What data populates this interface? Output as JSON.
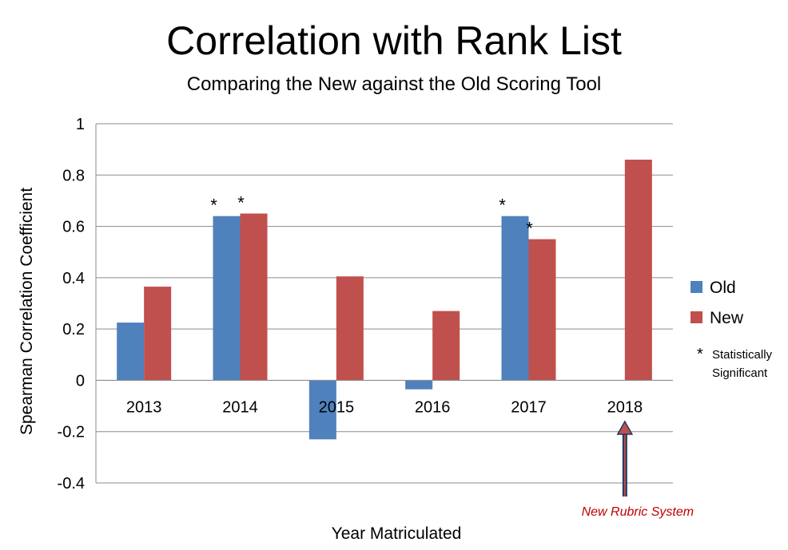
{
  "chart_data": {
    "type": "bar",
    "title": "Correlation with Rank List",
    "subtitle": "Comparing the New against the Old Scoring Tool",
    "xlabel": "Year Matriculated",
    "ylabel": "Spearman Correlation Coefficient",
    "categories": [
      "2013",
      "2014",
      "2015",
      "2016",
      "2017",
      "2018"
    ],
    "series": [
      {
        "name": "Old",
        "color": "#4F81BD",
        "values": [
          0.225,
          0.64,
          -0.23,
          -0.035,
          0.64,
          null
        ]
      },
      {
        "name": "New",
        "color": "#C0504D",
        "values": [
          0.365,
          0.65,
          0.405,
          0.27,
          0.55,
          0.86
        ]
      }
    ],
    "ylim": [
      -0.4,
      1
    ],
    "yticks": [
      -0.4,
      -0.2,
      0,
      0.2,
      0.4,
      0.6,
      0.8,
      1
    ],
    "ytick_labels": [
      "-0.4",
      "-0.2",
      "0",
      "0.2",
      "0.4",
      "0.6",
      "0.8",
      "1"
    ],
    "grid": true,
    "legend_position": "right",
    "significance_markers": [
      {
        "category": "2014",
        "series": "Old",
        "symbol": "*"
      },
      {
        "category": "2014",
        "series": "New",
        "symbol": "*"
      },
      {
        "category": "2017",
        "series": "Old",
        "symbol": "*"
      },
      {
        "category": "2017",
        "series": "New",
        "symbol": "*"
      }
    ],
    "legend_note": {
      "symbol": "*",
      "line1": "Statistically",
      "line2": "Significant"
    },
    "annotation": {
      "text": "New Rubric System",
      "category": "2018",
      "color": "#C00000"
    }
  }
}
